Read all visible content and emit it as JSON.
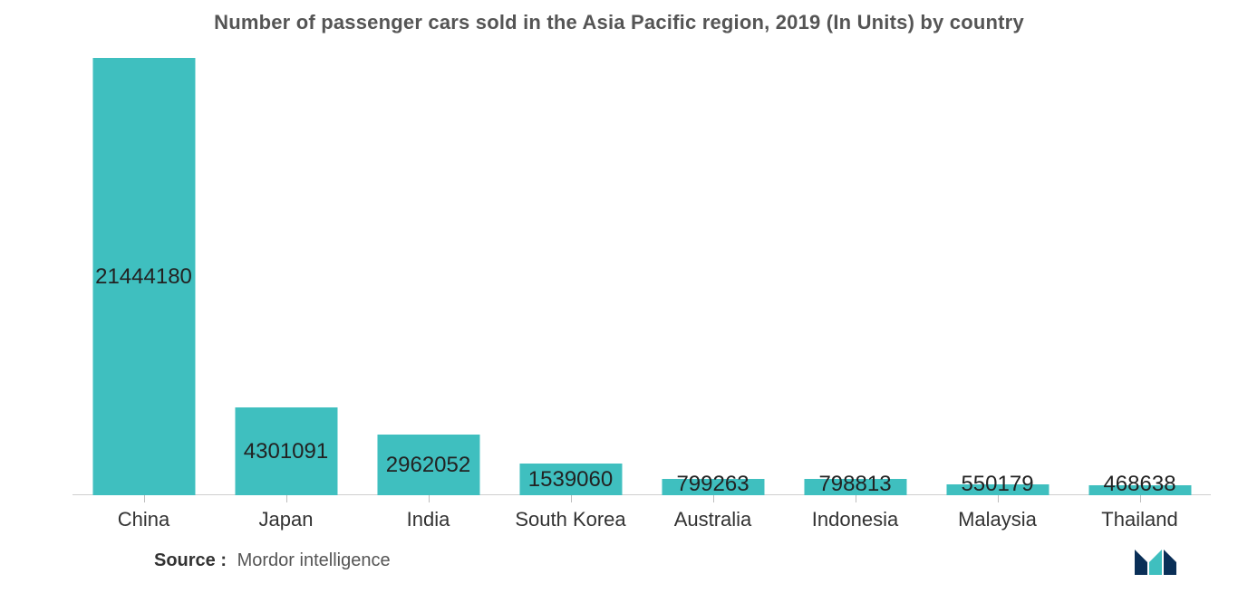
{
  "chart": {
    "type": "bar",
    "title": "Number of passenger cars sold in the Asia Pacific region, 2019 (In Units) by country",
    "title_fontsize": 22,
    "title_color": "#555555",
    "label_fontsize": 22,
    "label_color": "#333333",
    "value_fontsize": 24,
    "value_color": "#222222",
    "background_color": "#ffffff",
    "bar_color": "#3fbfbf",
    "axis_line_color": "#cfcfcf",
    "tick_color": "#bdbdbd",
    "ylim_max": 21444180,
    "bar_width_ratio": 0.72,
    "categories": [
      "China",
      "Japan",
      "India",
      "South Korea",
      "Australia",
      "Indonesia",
      "Malaysia",
      "Thailand"
    ],
    "values": [
      21444180,
      4301091,
      2962052,
      1539060,
      799263,
      798813,
      550179,
      468638
    ],
    "source_label": "Source :",
    "source_text": "Mordor intelligence",
    "source_fontsize": 20,
    "logo_colors": {
      "dark": "#0a2f57",
      "teal": "#3fbfbf"
    }
  }
}
